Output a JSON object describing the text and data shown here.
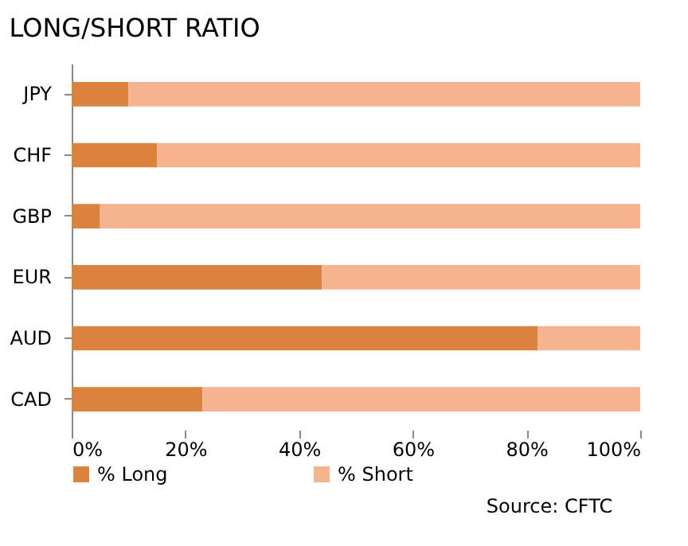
{
  "chart_data": {
    "type": "bar",
    "orientation": "horizontal",
    "stacked": true,
    "title": "LONG/SHORT RATIO",
    "categories": [
      "JPY",
      "CHF",
      "GBP",
      "EUR",
      "AUD",
      "CAD"
    ],
    "series": [
      {
        "name": "% Long",
        "color": "#d9833f",
        "values": [
          10,
          15,
          5,
          44,
          82,
          23
        ]
      },
      {
        "name": "% Short",
        "color": "#f6b38f",
        "values": [
          90,
          85,
          95,
          56,
          18,
          77
        ]
      }
    ],
    "xlim": [
      0,
      100
    ],
    "xticks": [
      {
        "value": 0,
        "label": "0%"
      },
      {
        "value": 20,
        "label": "20%"
      },
      {
        "value": 40,
        "label": "40%"
      },
      {
        "value": 60,
        "label": "60%"
      },
      {
        "value": 80,
        "label": "80%"
      },
      {
        "value": 100,
        "label": "100%"
      }
    ],
    "grid": false,
    "legend": "bottom",
    "annotations": [
      "Source: CFTC"
    ]
  }
}
